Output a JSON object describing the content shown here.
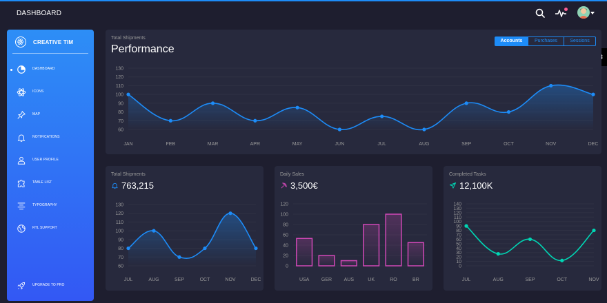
{
  "navbar": {
    "brand": "DASHBOARD"
  },
  "sidebar": {
    "brand": "CREATIVE TIM",
    "items": [
      {
        "label": "DASHBOARD",
        "icon": "chart-pie-icon",
        "active": true
      },
      {
        "label": "ICONS",
        "icon": "atom-icon"
      },
      {
        "label": "MAP",
        "icon": "pin-icon"
      },
      {
        "label": "NOTIFICATIONS",
        "icon": "bell-icon"
      },
      {
        "label": "USER PROFILE",
        "icon": "user-icon"
      },
      {
        "label": "TABLE LIST",
        "icon": "puzzle-icon"
      },
      {
        "label": "TYPOGRAPHY",
        "icon": "align-center-icon"
      },
      {
        "label": "RTL SUPPORT",
        "icon": "world-icon"
      }
    ],
    "upgrade_label": "UPGRADE TO PRO"
  },
  "performance": {
    "subtitle": "Total Shipments",
    "title": "Performance",
    "tabs": [
      "Accounts",
      "Purchases",
      "Sessions"
    ],
    "active_tab": "Accounts"
  },
  "shipments": {
    "subtitle": "Total Shipments",
    "value": "763,215"
  },
  "sales": {
    "subtitle": "Daily Sales",
    "value": "3,500€"
  },
  "tasks": {
    "subtitle": "Completed Tasks",
    "value": "12,100K"
  },
  "colors": {
    "primary": "#1d8cf8",
    "pink": "#d048b6",
    "teal": "#00d6b4",
    "card": "#27293d",
    "background": "#1e1e2f"
  },
  "chart_data": [
    {
      "type": "line",
      "categories": [
        "JAN",
        "FEB",
        "MAR",
        "APR",
        "MAY",
        "JUN",
        "JUL",
        "AUG",
        "SEP",
        "OCT",
        "NOV",
        "DEC"
      ],
      "values": [
        100,
        70,
        90,
        70,
        85,
        60,
        75,
        60,
        90,
        80,
        110,
        100
      ],
      "yticks": [
        60,
        70,
        80,
        90,
        100,
        110,
        120,
        130
      ],
      "ylim": [
        60,
        130
      ],
      "color": "#1d8cf8"
    },
    {
      "type": "line",
      "categories": [
        "JUL",
        "AUG",
        "SEP",
        "OCT",
        "NOV",
        "DEC"
      ],
      "values": [
        80,
        100,
        70,
        80,
        120,
        80
      ],
      "yticks": [
        60,
        70,
        80,
        90,
        100,
        110,
        120,
        130
      ],
      "ylim": [
        60,
        130
      ],
      "color": "#1d8cf8"
    },
    {
      "type": "bar",
      "categories": [
        "USA",
        "GER",
        "AUS",
        "UK",
        "RO",
        "BR"
      ],
      "values": [
        53,
        20,
        10,
        80,
        100,
        45
      ],
      "yticks": [
        0,
        20,
        40,
        60,
        80,
        100,
        120
      ],
      "ylim": [
        0,
        120
      ],
      "color": "#d048b6"
    },
    {
      "type": "line",
      "categories": [
        "JUL",
        "AUG",
        "SEP",
        "OCT",
        "NOV"
      ],
      "values": [
        90,
        27,
        60,
        12,
        80
      ],
      "yticks": [
        0,
        10,
        20,
        30,
        40,
        50,
        60,
        70,
        80,
        90,
        100,
        110,
        120,
        130,
        140
      ],
      "ylim": [
        0,
        140
      ],
      "color": "#00d6b4"
    }
  ]
}
